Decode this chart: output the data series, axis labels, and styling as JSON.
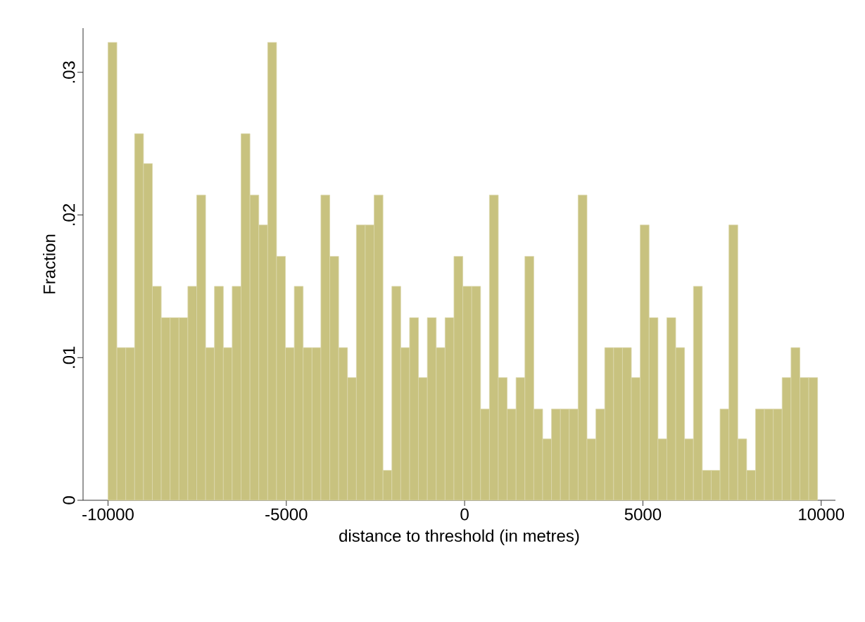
{
  "chart_data": {
    "type": "histogram",
    "xlabel": "distance to threshold (in metres)",
    "ylabel": "Fraction",
    "color": "#c8c27f",
    "bins": [
      -10000,
      -9751.25,
      -9502.5,
      -9253.75,
      -9005,
      -8756.25,
      -8507.5,
      -8258.75,
      -8010,
      -7761.25,
      -7512.5,
      -7263.75,
      -7015,
      -6766.25,
      -6517.5,
      -6268.75,
      -6020,
      -5771.25,
      -5522.5,
      -5273.75,
      -5025,
      -4776.25,
      -4527.5,
      -4278.75,
      -4030,
      -3781.25,
      -3532.5,
      -3283.75,
      -3035,
      -2786.25,
      -2537.5,
      -2288.75,
      -2040,
      -1791.25,
      -1542.5,
      -1293.75,
      -1045,
      -796.25,
      -547.5,
      -298.75,
      -50,
      198.75,
      447.5,
      696.25,
      945,
      1193.75,
      1442.5,
      1691.25,
      1940,
      2188.75,
      2437.5,
      2686.25,
      2935,
      3183.75,
      3432.5,
      3681.25,
      3930,
      4178.75,
      4427.5,
      4676.25,
      4925,
      5173.75,
      5422.5,
      5671.25,
      5920,
      6168.75,
      6417.5,
      6666.25,
      6915,
      7163.75,
      7412.5,
      7661.25,
      7910,
      8158.75,
      8407.5,
      8656.25,
      8905,
      9153.75,
      9402.5,
      9651.25,
      9900
    ],
    "values": [
      0.0321,
      0.0107,
      0.0107,
      0.0257,
      0.0236,
      0.015,
      0.0128,
      0.0128,
      0.0128,
      0.015,
      0.0214,
      0.0107,
      0.015,
      0.0107,
      0.015,
      0.0257,
      0.0214,
      0.0193,
      0.0321,
      0.0171,
      0.0107,
      0.015,
      0.0107,
      0.0107,
      0.0214,
      0.0171,
      0.0107,
      0.0086,
      0.0193,
      0.0193,
      0.0214,
      0.0021,
      0.015,
      0.0107,
      0.0128,
      0.0086,
      0.0128,
      0.0107,
      0.0128,
      0.0171,
      0.015,
      0.015,
      0.0064,
      0.0214,
      0.0086,
      0.0064,
      0.0086,
      0.0171,
      0.0064,
      0.0043,
      0.0064,
      0.0064,
      0.0064,
      0.0214,
      0.0043,
      0.0064,
      0.0107,
      0.0107,
      0.0107,
      0.0086,
      0.0193,
      0.0128,
      0.0043,
      0.0128,
      0.0107,
      0.0043,
      0.015,
      0.0021,
      0.0021,
      0.0064,
      0.0193,
      0.0043,
      0.0021,
      0.0064,
      0.0064,
      0.0064,
      0.0086,
      0.0107,
      0.0086,
      0.0086
    ],
    "xlim": [
      -10700,
      10400
    ],
    "ylim": [
      0,
      0.0331
    ],
    "xticks": [
      -10000,
      -5000,
      0,
      5000,
      10000
    ],
    "yticks": [
      {
        "value": 0,
        "label": "0"
      },
      {
        "value": 0.01,
        "label": ".01"
      },
      {
        "value": 0.02,
        "label": ".02"
      },
      {
        "value": 0.03,
        "label": ".03"
      }
    ]
  }
}
